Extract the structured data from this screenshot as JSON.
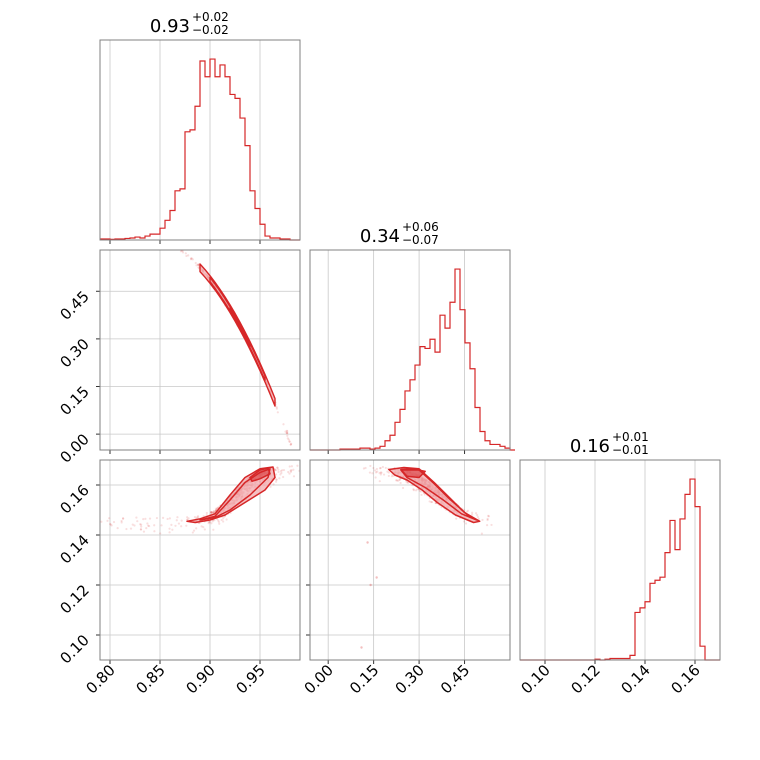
{
  "chart_data": {
    "type": "corner",
    "accent_color": "#d62728",
    "fill_color": "#f2a9ad",
    "grid": true,
    "panels": {
      "p1_hist": {
        "title": {
          "main": "0.93",
          "sup": "+0.02",
          "sub": "−0.02"
        },
        "xlim": [
          0.79,
          0.99
        ],
        "bins_x0": 0.79,
        "bin_width": 0.005,
        "counts": [
          0.5,
          0.5,
          0.3,
          0.5,
          0.5,
          0.8,
          1,
          1.5,
          1,
          2,
          3,
          3,
          6,
          10,
          15,
          25,
          26,
          55,
          56,
          68,
          91,
          83,
          92,
          83,
          89,
          83,
          74,
          72,
          62,
          48,
          25,
          16,
          8,
          2,
          1,
          1,
          0.5,
          0.5,
          0,
          0
        ]
      },
      "p2_scatter": {
        "xlim": [
          0.79,
          0.99
        ],
        "ylim": [
          -0.05,
          0.58
        ],
        "y_ticks": [
          0.0,
          0.15,
          0.3,
          0.45
        ],
        "y_tick_labels": [
          "0.00",
          "0.15",
          "0.30",
          "0.45"
        ],
        "relation": "y = 0.34 - 5.8*(x-0.93) - 30*(x-0.93)^2",
        "x_dense_range": [
          0.89,
          0.965
        ]
      },
      "p3_hist": {
        "title": {
          "main": "0.34",
          "sup": "+0.06",
          "sub": "−0.07"
        },
        "xlim": [
          -0.06,
          0.6
        ],
        "bins_x0": -0.06,
        "bin_width": 0.0165,
        "counts": [
          0,
          0,
          0,
          0,
          0,
          0,
          0.5,
          0.5,
          0.5,
          0.5,
          1,
          1,
          0.5,
          1,
          2,
          5,
          8,
          15,
          22,
          32,
          38,
          46,
          56,
          55,
          60,
          53,
          73,
          66,
          80,
          98,
          76,
          58,
          44,
          23,
          10,
          5,
          3,
          3,
          2,
          1,
          0
        ]
      },
      "p4_scatter": {
        "xlim": [
          0.79,
          0.99
        ],
        "ylim": [
          0.09,
          0.17
        ],
        "y_ticks": [
          0.1,
          0.12,
          0.14,
          0.16
        ],
        "y_tick_labels": [
          "0.10",
          "0.12",
          "0.14",
          "0.16"
        ],
        "x_ticks": [
          0.8,
          0.85,
          0.9,
          0.95
        ],
        "x_tick_labels": [
          "0.80",
          "0.85",
          "0.90",
          "0.95"
        ],
        "contour_outer": [
          [
            0.877,
            0.1455
          ],
          [
            0.89,
            0.1465
          ],
          [
            0.905,
            0.1485
          ],
          [
            0.92,
            0.156
          ],
          [
            0.935,
            0.163
          ],
          [
            0.95,
            0.1665
          ],
          [
            0.963,
            0.1672
          ],
          [
            0.965,
            0.163
          ],
          [
            0.955,
            0.158
          ],
          [
            0.935,
            0.153
          ],
          [
            0.915,
            0.148
          ],
          [
            0.9,
            0.146
          ],
          [
            0.885,
            0.145
          ]
        ],
        "contour_mid": [
          [
            0.89,
            0.146
          ],
          [
            0.905,
            0.1475
          ],
          [
            0.92,
            0.154
          ],
          [
            0.935,
            0.161
          ],
          [
            0.95,
            0.165
          ],
          [
            0.96,
            0.1665
          ],
          [
            0.958,
            0.163
          ],
          [
            0.94,
            0.156
          ],
          [
            0.92,
            0.15
          ],
          [
            0.905,
            0.147
          ]
        ],
        "contour_inner": [
          [
            0.94,
            0.163
          ],
          [
            0.95,
            0.166
          ],
          [
            0.958,
            0.1668
          ],
          [
            0.96,
            0.1645
          ],
          [
            0.95,
            0.1625
          ],
          [
            0.942,
            0.1615
          ]
        ]
      },
      "p5_scatter": {
        "xlim": [
          -0.06,
          0.6
        ],
        "ylim": [
          0.09,
          0.17
        ],
        "x_ticks": [
          0.0,
          0.15,
          0.3,
          0.45
        ],
        "x_tick_labels": [
          "0.00",
          "0.15",
          "0.30",
          "0.45"
        ],
        "contour_outer": [
          [
            0.2,
            0.1662
          ],
          [
            0.25,
            0.167
          ],
          [
            0.3,
            0.1665
          ],
          [
            0.35,
            0.161
          ],
          [
            0.4,
            0.155
          ],
          [
            0.45,
            0.149
          ],
          [
            0.5,
            0.1455
          ],
          [
            0.48,
            0.145
          ],
          [
            0.42,
            0.148
          ],
          [
            0.36,
            0.153
          ],
          [
            0.31,
            0.158
          ],
          [
            0.26,
            0.162
          ],
          [
            0.22,
            0.164
          ]
        ],
        "contour_mid": [
          [
            0.24,
            0.166
          ],
          [
            0.3,
            0.166
          ],
          [
            0.35,
            0.1605
          ],
          [
            0.4,
            0.1545
          ],
          [
            0.46,
            0.148
          ],
          [
            0.49,
            0.146
          ],
          [
            0.44,
            0.1485
          ],
          [
            0.38,
            0.154
          ],
          [
            0.32,
            0.159
          ],
          [
            0.26,
            0.163
          ]
        ],
        "contour_inner": [
          [
            0.24,
            0.1662
          ],
          [
            0.28,
            0.1665
          ],
          [
            0.32,
            0.1655
          ],
          [
            0.3,
            0.163
          ],
          [
            0.26,
            0.1635
          ]
        ]
      },
      "p6_hist": {
        "title": {
          "main": "0.16",
          "sup": "+0.01",
          "sub": "−0.01"
        },
        "xlim": [
          0.09,
          0.17
        ],
        "x_ticks": [
          0.1,
          0.12,
          0.14,
          0.16
        ],
        "x_tick_labels": [
          "0.10",
          "0.12",
          "0.14",
          "0.16"
        ],
        "bins_x0": 0.09,
        "bin_width": 0.002,
        "counts": [
          0,
          0,
          0,
          0,
          0,
          0,
          0,
          0,
          0,
          0,
          0,
          0,
          0,
          0,
          0,
          0.5,
          0,
          0.5,
          1,
          1,
          1,
          1,
          3,
          31,
          34,
          38,
          50,
          52,
          54,
          70,
          91,
          72,
          92,
          108,
          118,
          100,
          9,
          0,
          0,
          0
        ]
      }
    }
  }
}
